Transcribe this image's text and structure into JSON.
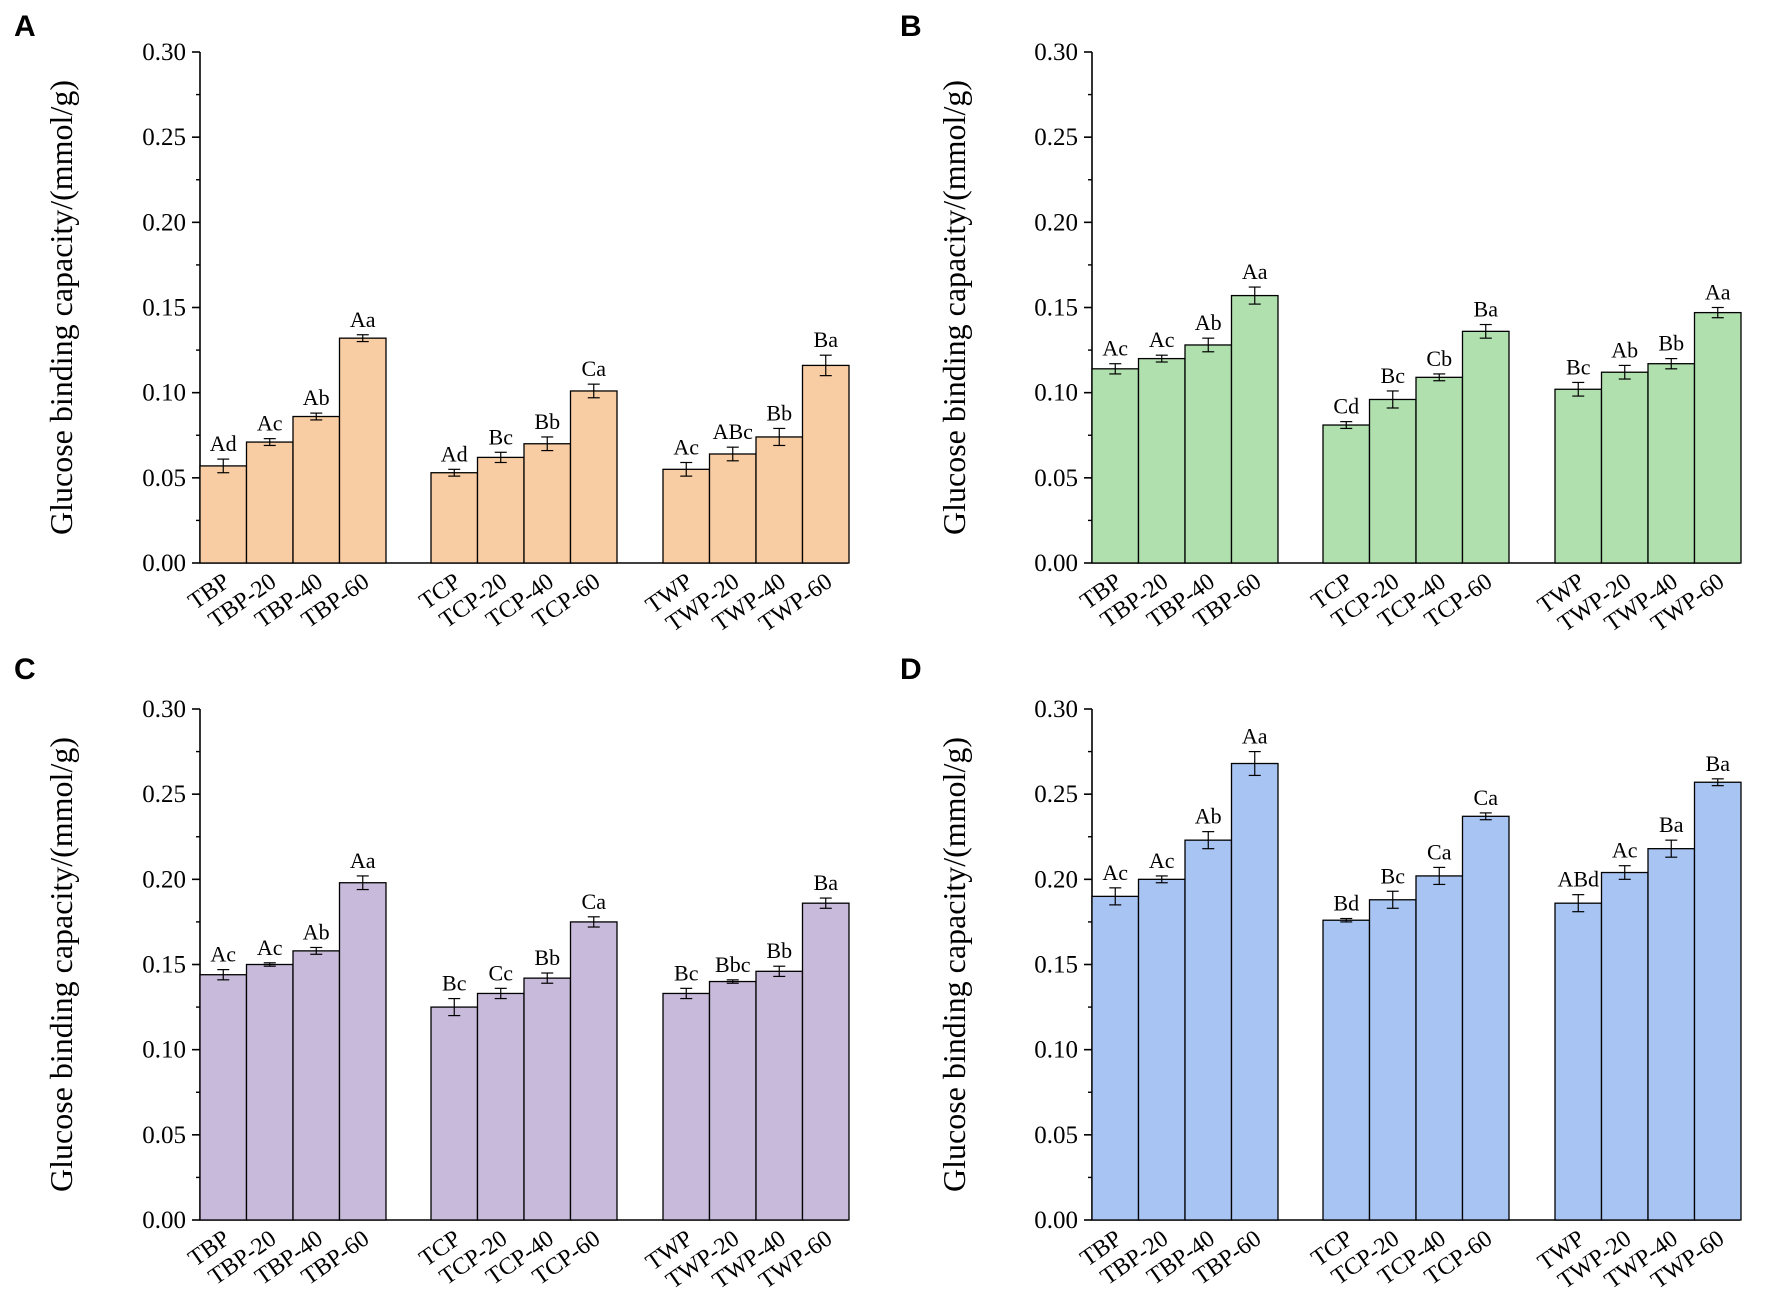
{
  "chart_data": [
    {
      "panel": "A",
      "type": "bar",
      "ylabel": "Glucose binding capacity/(mmol/g)",
      "ylim": [
        0,
        0.3
      ],
      "yticks": [
        "0.00",
        "0.05",
        "0.10",
        "0.15",
        "0.20",
        "0.25",
        "0.30"
      ],
      "color": "#f9cda3",
      "groups": [
        {
          "categories": [
            "TBP",
            "TBP-20",
            "TBP-40",
            "TBP-60"
          ],
          "values": [
            0.057,
            0.071,
            0.086,
            0.132
          ],
          "errors": [
            0.004,
            0.002,
            0.002,
            0.002
          ],
          "letters": [
            "Ad",
            "Ac",
            "Ab",
            "Aa"
          ]
        },
        {
          "categories": [
            "TCP",
            "TCP-20",
            "TCP-40",
            "TCP-60"
          ],
          "values": [
            0.053,
            0.062,
            0.07,
            0.101
          ],
          "errors": [
            0.002,
            0.003,
            0.004,
            0.004
          ],
          "letters": [
            "Ad",
            "Bc",
            "Bb",
            "Ca"
          ]
        },
        {
          "categories": [
            "TWP",
            "TWP-20",
            "TWP-40",
            "TWP-60"
          ],
          "values": [
            0.055,
            0.064,
            0.074,
            0.116
          ],
          "errors": [
            0.004,
            0.004,
            0.005,
            0.006
          ],
          "letters": [
            "Ac",
            "ABc",
            "Bb",
            "Ba"
          ]
        }
      ]
    },
    {
      "panel": "B",
      "type": "bar",
      "ylabel": "Glucose binding capacity/(mmol/g)",
      "ylim": [
        0,
        0.3
      ],
      "yticks": [
        "0.00",
        "0.05",
        "0.10",
        "0.15",
        "0.20",
        "0.25",
        "0.30"
      ],
      "color": "#b0e0ae",
      "groups": [
        {
          "categories": [
            "TBP",
            "TBP-20",
            "TBP-40",
            "TBP-60"
          ],
          "values": [
            0.114,
            0.12,
            0.128,
            0.157
          ],
          "errors": [
            0.003,
            0.002,
            0.004,
            0.005
          ],
          "letters": [
            "Ac",
            "Ac",
            "Ab",
            "Aa"
          ]
        },
        {
          "categories": [
            "TCP",
            "TCP-20",
            "TCP-40",
            "TCP-60"
          ],
          "values": [
            0.081,
            0.096,
            0.109,
            0.136
          ],
          "errors": [
            0.002,
            0.005,
            0.002,
            0.004
          ],
          "letters": [
            "Cd",
            "Bc",
            "Cb",
            "Ba"
          ]
        },
        {
          "categories": [
            "TWP",
            "TWP-20",
            "TWP-40",
            "TWP-60"
          ],
          "values": [
            0.102,
            0.112,
            0.117,
            0.147
          ],
          "errors": [
            0.004,
            0.004,
            0.003,
            0.003
          ],
          "letters": [
            "Bc",
            "Ab",
            "Bb",
            "Aa"
          ]
        }
      ]
    },
    {
      "panel": "C",
      "type": "bar",
      "ylabel": "Glucose binding capacity/(mmol/g)",
      "ylim": [
        0,
        0.3
      ],
      "yticks": [
        "0.00",
        "0.05",
        "0.10",
        "0.15",
        "0.20",
        "0.25",
        "0.30"
      ],
      "color": "#c8badb",
      "groups": [
        {
          "categories": [
            "TBP",
            "TBP-20",
            "TBP-40",
            "TBP-60"
          ],
          "values": [
            0.144,
            0.15,
            0.158,
            0.198
          ],
          "errors": [
            0.003,
            0.001,
            0.002,
            0.004
          ],
          "letters": [
            "Ac",
            "Ac",
            "Ab",
            "Aa"
          ]
        },
        {
          "categories": [
            "TCP",
            "TCP-20",
            "TCP-40",
            "TCP-60"
          ],
          "values": [
            0.125,
            0.133,
            0.142,
            0.175
          ],
          "errors": [
            0.005,
            0.003,
            0.003,
            0.003
          ],
          "letters": [
            "Bc",
            "Cc",
            "Bb",
            "Ca"
          ]
        },
        {
          "categories": [
            "TWP",
            "TWP-20",
            "TWP-40",
            "TWP-60"
          ],
          "values": [
            0.133,
            0.14,
            0.146,
            0.186
          ],
          "errors": [
            0.003,
            0.001,
            0.003,
            0.003
          ],
          "letters": [
            "Bc",
            "Bbc",
            "Bb",
            "Ba"
          ]
        }
      ]
    },
    {
      "panel": "D",
      "type": "bar",
      "ylabel": "Glucose binding capacity/(mmol/g)",
      "ylim": [
        0,
        0.3
      ],
      "yticks": [
        "0.00",
        "0.05",
        "0.10",
        "0.15",
        "0.20",
        "0.25",
        "0.30"
      ],
      "color": "#a8c4f2",
      "groups": [
        {
          "categories": [
            "TBP",
            "TBP-20",
            "TBP-40",
            "TBP-60"
          ],
          "values": [
            0.19,
            0.2,
            0.223,
            0.268
          ],
          "errors": [
            0.005,
            0.002,
            0.005,
            0.007
          ],
          "letters": [
            "Ac",
            "Ac",
            "Ab",
            "Aa"
          ]
        },
        {
          "categories": [
            "TCP",
            "TCP-20",
            "TCP-40",
            "TCP-60"
          ],
          "values": [
            0.176,
            0.188,
            0.202,
            0.237
          ],
          "errors": [
            0.001,
            0.005,
            0.005,
            0.002
          ],
          "letters": [
            "Bd",
            "Bc",
            "Ca",
            "Ca"
          ]
        },
        {
          "categories": [
            "TWP",
            "TWP-20",
            "TWP-40",
            "TWP-60"
          ],
          "values": [
            0.186,
            0.204,
            0.218,
            0.257
          ],
          "errors": [
            0.005,
            0.004,
            0.005,
            0.002
          ],
          "letters": [
            "ABd",
            "Ac",
            "Ba",
            "Ba"
          ]
        }
      ]
    }
  ]
}
